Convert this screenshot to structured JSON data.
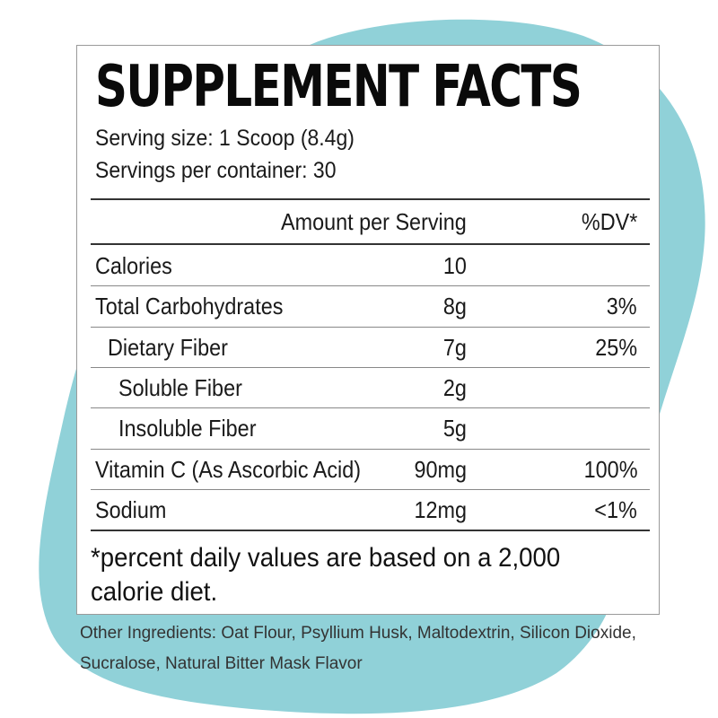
{
  "colors": {
    "blob": "#90d1d8",
    "border": "#9a9a9a",
    "text": "#111111"
  },
  "label": {
    "title": "SUPPLEMENT FACTS",
    "serving_size": "Serving size: 1 Scoop (8.4g)",
    "servings_per_container": "Servings per container: 30",
    "header": {
      "amount": "Amount per Serving",
      "dv": "%DV*"
    },
    "rows": [
      {
        "name": "Calories",
        "amount": "10",
        "dv": "",
        "indent": 0
      },
      {
        "name": "Total Carbohydrates",
        "amount": "8g",
        "dv": "3%",
        "indent": 0
      },
      {
        "name": "Dietary Fiber",
        "amount": "7g",
        "dv": "25%",
        "indent": 1
      },
      {
        "name": "Soluble Fiber",
        "amount": "2g",
        "dv": "",
        "indent": 2
      },
      {
        "name": "Insoluble Fiber",
        "amount": "5g",
        "dv": "",
        "indent": 2
      },
      {
        "name": "Vitamin C (As Ascorbic Acid)",
        "amount": "90mg",
        "dv": "100%",
        "indent": 0
      },
      {
        "name": "Sodium",
        "amount": "12mg",
        "dv": "<1%",
        "indent": 0
      }
    ],
    "footnote": "*percent daily values are based on a 2,000 calorie diet."
  },
  "other_ingredients": "Other Ingredients: Oat Flour, Psyllium Husk, Maltodextrin, Silicon Dioxide, Sucralose, Natural Bitter Mask Flavor"
}
